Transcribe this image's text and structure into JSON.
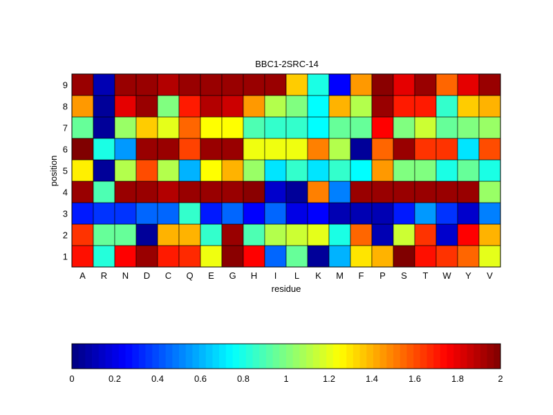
{
  "chart_data": {
    "type": "heatmap",
    "title": "BBC1-2SRC-14",
    "xlabel": "residue",
    "ylabel": "position",
    "x_categories": [
      "A",
      "R",
      "N",
      "D",
      "C",
      "Q",
      "E",
      "G",
      "H",
      "I",
      "L",
      "K",
      "M",
      "F",
      "P",
      "S",
      "T",
      "W",
      "Y",
      "V"
    ],
    "y_categories": [
      "1",
      "2",
      "3",
      "4",
      "5",
      "6",
      "7",
      "8",
      "9"
    ],
    "colormap": "jet",
    "clim": [
      0,
      2
    ],
    "colorbar": {
      "orientation": "horizontal",
      "placement": "bottom",
      "tick_values": [
        0,
        0.2,
        0.4,
        0.6,
        0.8,
        1,
        1.2,
        1.4,
        1.6,
        1.8,
        2
      ],
      "tick_labels": [
        "0",
        "0.2",
        "0.4",
        "0.6",
        "0.8",
        "1",
        "1.2",
        "1.4",
        "1.6",
        "1.8",
        "2"
      ]
    },
    "values": [
      [
        1.72,
        0.82,
        1.75,
        1.95,
        1.7,
        1.67,
        1.22,
        1.98,
        1.75,
        0.45,
        0.95,
        0.05,
        0.6,
        1.3,
        1.4,
        2.0,
        1.72,
        1.65,
        1.55,
        1.2
      ],
      [
        1.65,
        0.95,
        0.95,
        0.05,
        1.4,
        1.4,
        0.85,
        1.95,
        0.9,
        1.1,
        1.15,
        1.2,
        0.8,
        1.55,
        0.1,
        1.15,
        1.65,
        0.15,
        1.75,
        1.4
      ],
      [
        0.3,
        0.35,
        0.35,
        0.45,
        0.45,
        0.85,
        0.3,
        0.45,
        0.25,
        0.45,
        0.2,
        0.25,
        0.1,
        0.1,
        0.1,
        0.3,
        0.55,
        0.35,
        0.15,
        0.5
      ],
      [
        1.95,
        0.9,
        1.95,
        1.95,
        1.9,
        1.95,
        1.95,
        1.95,
        1.98,
        0.15,
        0.05,
        1.5,
        0.5,
        1.95,
        1.95,
        1.95,
        1.95,
        1.95,
        1.95,
        1.05
      ],
      [
        1.28,
        0.05,
        1.1,
        1.6,
        1.1,
        0.6,
        1.25,
        1.4,
        1.05,
        0.7,
        0.85,
        0.7,
        0.85,
        0.75,
        1.45,
        1.0,
        1.0,
        0.8,
        0.95,
        0.8
      ],
      [
        2.0,
        0.8,
        0.55,
        1.95,
        1.95,
        1.62,
        1.95,
        1.95,
        1.22,
        1.22,
        1.22,
        1.5,
        1.1,
        0.05,
        1.55,
        1.95,
        1.65,
        1.65,
        0.7,
        1.6
      ],
      [
        0.95,
        0.05,
        1.05,
        1.35,
        1.2,
        1.55,
        1.25,
        1.25,
        0.9,
        0.85,
        0.85,
        0.75,
        0.95,
        0.95,
        1.75,
        1.0,
        1.15,
        0.95,
        1.0,
        1.05
      ],
      [
        1.45,
        0.05,
        1.8,
        1.95,
        1.0,
        1.7,
        1.9,
        1.85,
        1.45,
        1.1,
        1.0,
        0.75,
        1.4,
        1.1,
        1.95,
        1.7,
        1.7,
        0.85,
        1.35,
        1.4
      ],
      [
        1.95,
        0.1,
        1.95,
        1.95,
        1.9,
        1.95,
        1.95,
        1.95,
        1.95,
        1.95,
        1.35,
        0.8,
        0.25,
        1.45,
        1.98,
        1.8,
        1.95,
        1.55,
        1.8,
        1.95
      ]
    ]
  }
}
